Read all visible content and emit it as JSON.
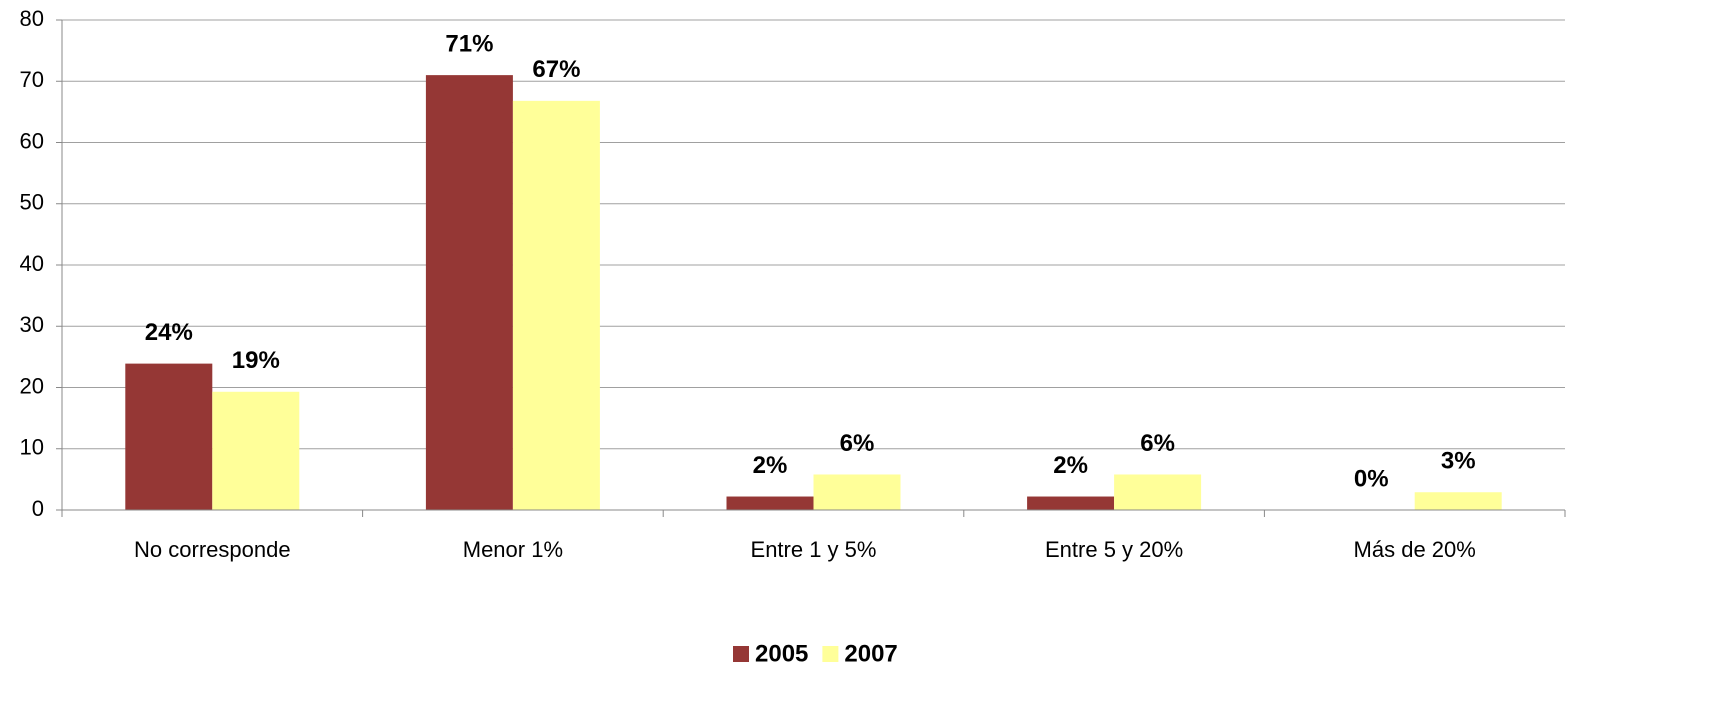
{
  "chart_data": {
    "type": "bar",
    "categories": [
      "No corresponde",
      "Menor 1%",
      "Entre 1 y 5%",
      "Entre 5 y 20%",
      "Más de 20%"
    ],
    "series": [
      {
        "name": "2005",
        "color": "#953735",
        "values": [
          23.9,
          71,
          2.2,
          2.2,
          0
        ],
        "value_labels": [
          "24%",
          "71%",
          "2%",
          "2%",
          "0%"
        ]
      },
      {
        "name": "2007",
        "color": "#FFFF99",
        "values": [
          19.3,
          66.8,
          5.8,
          5.8,
          2.9
        ],
        "value_labels": [
          "19%",
          "67%",
          "6%",
          "6%",
          "3%"
        ]
      }
    ],
    "ylim": [
      0,
      80
    ],
    "yticks": [
      0,
      10,
      20,
      30,
      40,
      50,
      60,
      70,
      80
    ],
    "grid": true,
    "legend": "bottom"
  }
}
